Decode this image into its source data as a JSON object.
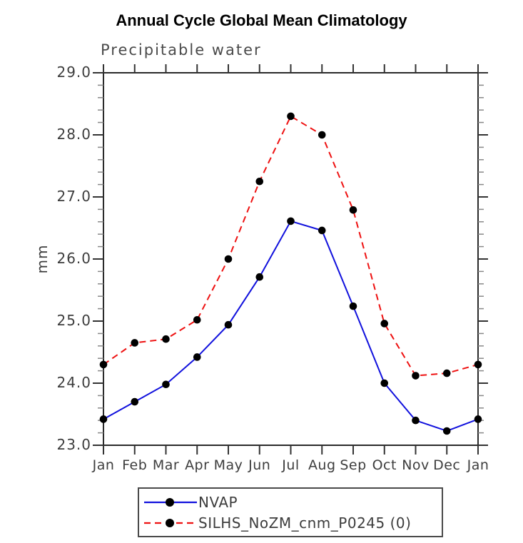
{
  "chart_data": {
    "type": "line",
    "title": "Annual Cycle Global Mean Climatology",
    "subtitle": "Precipitable water",
    "ylabel": "mm",
    "xlabel": "",
    "categories": [
      "Jan",
      "Feb",
      "Mar",
      "Apr",
      "May",
      "Jun",
      "Jul",
      "Aug",
      "Sep",
      "Oct",
      "Nov",
      "Dec",
      "Jan"
    ],
    "series": [
      {
        "name": "NVAP",
        "color": "#1111dd",
        "line_style": "solid",
        "marker": "filled-circle",
        "marker_color": "#000000",
        "values": [
          23.42,
          23.7,
          23.98,
          24.42,
          24.94,
          25.71,
          26.61,
          26.46,
          25.24,
          24.0,
          23.4,
          23.23,
          23.42
        ]
      },
      {
        "name": "SILHS_NoZM_cnm_P0245 (0)",
        "color": "#ee1111",
        "line_style": "dashed",
        "marker": "filled-circle",
        "marker_color": "#000000",
        "values": [
          24.3,
          24.65,
          24.71,
          25.02,
          26.0,
          27.25,
          28.3,
          28.0,
          26.79,
          24.96,
          24.12,
          24.16,
          24.3
        ]
      }
    ],
    "ylim": [
      23.0,
      29.0
    ],
    "ytick_major": 1.0,
    "ytick_minor": 0.2,
    "ytick_labels": [
      "23.0",
      "24.0",
      "25.0",
      "26.0",
      "27.0",
      "28.0",
      "29.0"
    ],
    "grid": false,
    "legend_position": "bottom-center",
    "axis_color": "#2a2a2a",
    "major_tick_color": "#333333",
    "minor_tick_color": "#888888",
    "label_color": "#3d3d3d"
  }
}
